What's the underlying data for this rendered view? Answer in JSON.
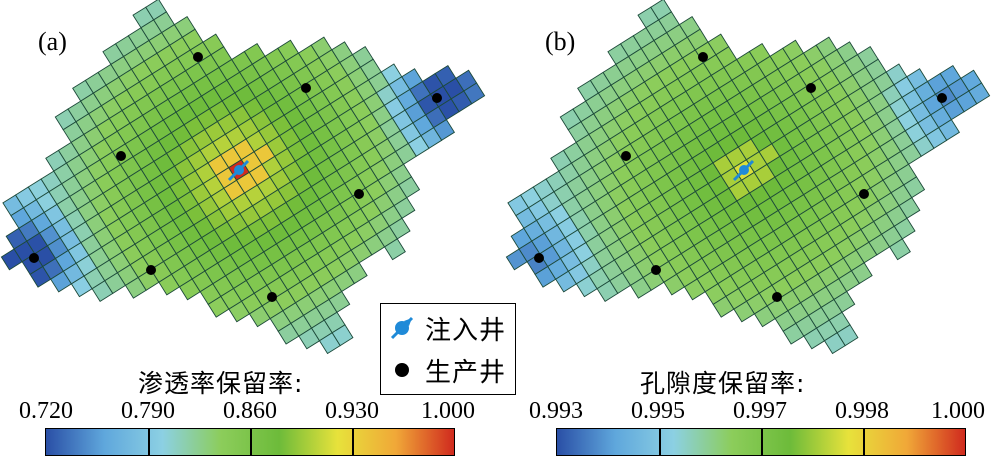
{
  "panels": [
    {
      "label": "(a)",
      "colorbar_title": "渗透率保留率:",
      "ticks": [
        "0.720",
        "0.790",
        "0.860",
        "0.930",
        "1.000"
      ]
    },
    {
      "label": "(b)",
      "colorbar_title": "孔隙度保留率:",
      "ticks": [
        "0.993",
        "0.995",
        "0.997",
        "0.998",
        "1.000"
      ]
    }
  ],
  "legend": {
    "injection_well": "注入井",
    "production_well": "生产井"
  },
  "colors": {
    "colormap": [
      "#2a4fa6",
      "#5fa7dc",
      "#8cd0e3",
      "#8ccd5b",
      "#6dbb3a",
      "#e7e23b",
      "#f0a838",
      "#d02a1e"
    ],
    "grid_line": "#1d4a3a",
    "injection_well": "#1f8ad8",
    "production_well": "#000000"
  },
  "icons": {
    "injection_well": "injection-well-icon",
    "production_well": "production-well-icon"
  }
}
